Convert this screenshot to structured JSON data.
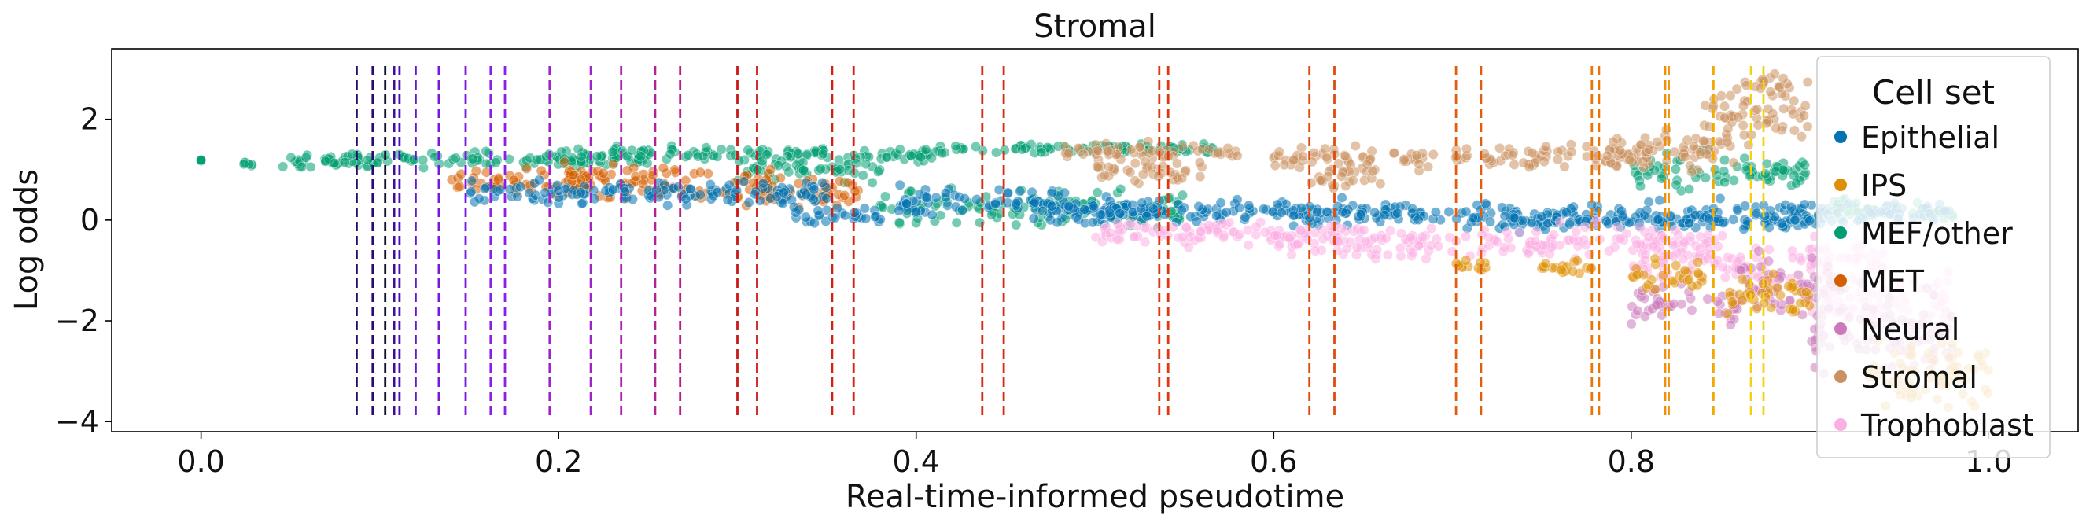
{
  "chart_data": {
    "type": "scatter",
    "title": "Stromal",
    "xlabel": "Real-time-informed pseudotime",
    "ylabel": "Log odds",
    "xlim": [
      -0.05,
      1.05
    ],
    "ylim": [
      -4.2,
      3.4
    ],
    "xticks": [
      0.0,
      0.2,
      0.4,
      0.6,
      0.8,
      1.0
    ],
    "xtick_labels": [
      "0.0",
      "0.2",
      "0.4",
      "0.6",
      "0.8",
      "1.0"
    ],
    "yticks": [
      2,
      0,
      -2,
      -4
    ],
    "ytick_labels": [
      "2",
      "0",
      "−2",
      "−4"
    ],
    "grid": false,
    "legend": {
      "title": "Cell set",
      "position": "right",
      "entries": [
        {
          "label": "Epithelial",
          "color": "#0173b2"
        },
        {
          "label": "IPS",
          "color": "#de8f05"
        },
        {
          "label": "MEF/other",
          "color": "#029e73"
        },
        {
          "label": "MET",
          "color": "#d55e00"
        },
        {
          "label": "Neural",
          "color": "#cc78bc"
        },
        {
          "label": "Stromal",
          "color": "#ca9161"
        },
        {
          "label": "Trophoblast",
          "color": "#fbafe4"
        }
      ]
    },
    "series": [
      {
        "name": "MEF/other",
        "color": "#029e73",
        "segments": [
          {
            "x0": 0.0,
            "x1": 0.0,
            "y": 1.18,
            "spread": 0.02
          },
          {
            "x0": 0.02,
            "x1": 0.03,
            "y": 1.12,
            "spread": 0.05
          },
          {
            "x0": 0.04,
            "x1": 0.1,
            "y": 1.15,
            "spread": 0.12
          },
          {
            "x0": 0.08,
            "x1": 0.25,
            "y": 1.2,
            "spread": 0.14
          },
          {
            "x0": 0.2,
            "x1": 0.42,
            "y": 1.32,
            "spread": 0.14
          },
          {
            "x0": 0.3,
            "x1": 0.38,
            "y": 1.0,
            "spread": 0.2
          },
          {
            "x0": 0.42,
            "x1": 0.57,
            "y": 1.42,
            "spread": 0.1
          },
          {
            "x0": 0.38,
            "x1": 0.55,
            "y": 0.2,
            "spread": 0.35
          },
          {
            "x0": 0.8,
            "x1": 0.9,
            "y": 0.95,
            "spread": 0.35
          },
          {
            "x0": 0.9,
            "x1": 0.98,
            "y": 0.2,
            "spread": 0.2
          }
        ]
      },
      {
        "name": "MET",
        "color": "#d55e00",
        "segments": [
          {
            "x0": 0.14,
            "x1": 0.22,
            "y": 0.75,
            "spread": 0.22
          },
          {
            "x0": 0.2,
            "x1": 0.32,
            "y": 0.75,
            "spread": 0.32
          },
          {
            "x0": 0.3,
            "x1": 0.37,
            "y": 0.55,
            "spread": 0.25
          }
        ]
      },
      {
        "name": "Epithelial",
        "color": "#0173b2",
        "segments": [
          {
            "x0": 0.15,
            "x1": 0.35,
            "y": 0.55,
            "spread": 0.25
          },
          {
            "x0": 0.33,
            "x1": 0.38,
            "y": 0.1,
            "spread": 0.2
          },
          {
            "x0": 0.39,
            "x1": 0.49,
            "y": 0.35,
            "spread": 0.3
          },
          {
            "x0": 0.47,
            "x1": 0.55,
            "y": 0.2,
            "spread": 0.25
          },
          {
            "x0": 0.5,
            "x1": 0.98,
            "y": 0.15,
            "spread": 0.2
          },
          {
            "x0": 0.7,
            "x1": 0.9,
            "y": -0.05,
            "spread": 0.15
          }
        ]
      },
      {
        "name": "Stromal",
        "color": "#ca9161",
        "segments": [
          {
            "x0": 0.48,
            "x1": 0.58,
            "y": 1.35,
            "spread": 0.15
          },
          {
            "x0": 0.5,
            "x1": 0.56,
            "y": 0.95,
            "spread": 0.22
          },
          {
            "x0": 0.6,
            "x1": 0.69,
            "y": 1.25,
            "spread": 0.22
          },
          {
            "x0": 0.62,
            "x1": 0.66,
            "y": 0.8,
            "spread": 0.2
          },
          {
            "x0": 0.7,
            "x1": 0.81,
            "y": 1.25,
            "spread": 0.25
          },
          {
            "x0": 0.78,
            "x1": 0.86,
            "y": 1.4,
            "spread": 0.35
          },
          {
            "x0": 0.84,
            "x1": 0.9,
            "y": 2.1,
            "spread": 0.55
          },
          {
            "x0": 0.86,
            "x1": 0.89,
            "y": 2.7,
            "spread": 0.2
          }
        ]
      },
      {
        "name": "Trophoblast",
        "color": "#fbafe4",
        "segments": [
          {
            "x0": 0.5,
            "x1": 0.65,
            "y": -0.25,
            "spread": 0.22
          },
          {
            "x0": 0.6,
            "x1": 0.85,
            "y": -0.45,
            "spread": 0.3
          },
          {
            "x0": 0.8,
            "x1": 0.95,
            "y": -0.8,
            "spread": 0.45
          },
          {
            "x0": 0.9,
            "x1": 0.98,
            "y": -1.6,
            "spread": 0.6
          }
        ]
      },
      {
        "name": "Neural",
        "color": "#cc78bc",
        "segments": [
          {
            "x0": 0.8,
            "x1": 0.86,
            "y": -1.7,
            "spread": 0.35
          },
          {
            "x0": 0.86,
            "x1": 0.92,
            "y": -1.3,
            "spread": 0.55
          },
          {
            "x0": 0.9,
            "x1": 0.98,
            "y": -2.3,
            "spread": 0.7
          }
        ]
      },
      {
        "name": "IPS",
        "color": "#de8f05",
        "segments": [
          {
            "x0": 0.7,
            "x1": 0.72,
            "y": -0.9,
            "spread": 0.12
          },
          {
            "x0": 0.75,
            "x1": 0.78,
            "y": -0.95,
            "spread": 0.15
          },
          {
            "x0": 0.8,
            "x1": 0.84,
            "y": -1.1,
            "spread": 0.3
          },
          {
            "x0": 0.85,
            "x1": 0.9,
            "y": -1.5,
            "spread": 0.4
          },
          {
            "x0": 0.93,
            "x1": 1.0,
            "y": -3.0,
            "spread": 0.6
          }
        ]
      }
    ],
    "vlines": [
      {
        "x": 0.087,
        "color": "#2a0a6e"
      },
      {
        "x": 0.096,
        "color": "#2a0a6e"
      },
      {
        "x": 0.103,
        "color": "#111133"
      },
      {
        "x": 0.108,
        "color": "#3a0fa0"
      },
      {
        "x": 0.111,
        "color": "#4a0fb0"
      },
      {
        "x": 0.12,
        "color": "#6a14d6"
      },
      {
        "x": 0.133,
        "color": "#7b18e0"
      },
      {
        "x": 0.148,
        "color": "#7b18e0"
      },
      {
        "x": 0.162,
        "color": "#8b1fe8"
      },
      {
        "x": 0.17,
        "color": "#8b1fe8"
      },
      {
        "x": 0.195,
        "color": "#a022c8"
      },
      {
        "x": 0.218,
        "color": "#a022c8"
      },
      {
        "x": 0.235,
        "color": "#ae24b4"
      },
      {
        "x": 0.254,
        "color": "#b4209a"
      },
      {
        "x": 0.268,
        "color": "#b81e82"
      },
      {
        "x": 0.3,
        "color": "#c81818"
      },
      {
        "x": 0.311,
        "color": "#d01818"
      },
      {
        "x": 0.353,
        "color": "#d42014"
      },
      {
        "x": 0.365,
        "color": "#d42014"
      },
      {
        "x": 0.437,
        "color": "#d82c10"
      },
      {
        "x": 0.449,
        "color": "#d82c10"
      },
      {
        "x": 0.536,
        "color": "#e03810"
      },
      {
        "x": 0.541,
        "color": "#e03810"
      },
      {
        "x": 0.62,
        "color": "#e04a0e"
      },
      {
        "x": 0.634,
        "color": "#e04a0e"
      },
      {
        "x": 0.702,
        "color": "#e55c0c"
      },
      {
        "x": 0.716,
        "color": "#e55c0c"
      },
      {
        "x": 0.778,
        "color": "#ea760a"
      },
      {
        "x": 0.782,
        "color": "#ea760a"
      },
      {
        "x": 0.819,
        "color": "#f09006"
      },
      {
        "x": 0.821,
        "color": "#f09006"
      },
      {
        "x": 0.846,
        "color": "#f2a806"
      },
      {
        "x": 0.867,
        "color": "#f5d010"
      },
      {
        "x": 0.874,
        "color": "#f5d010"
      }
    ]
  }
}
